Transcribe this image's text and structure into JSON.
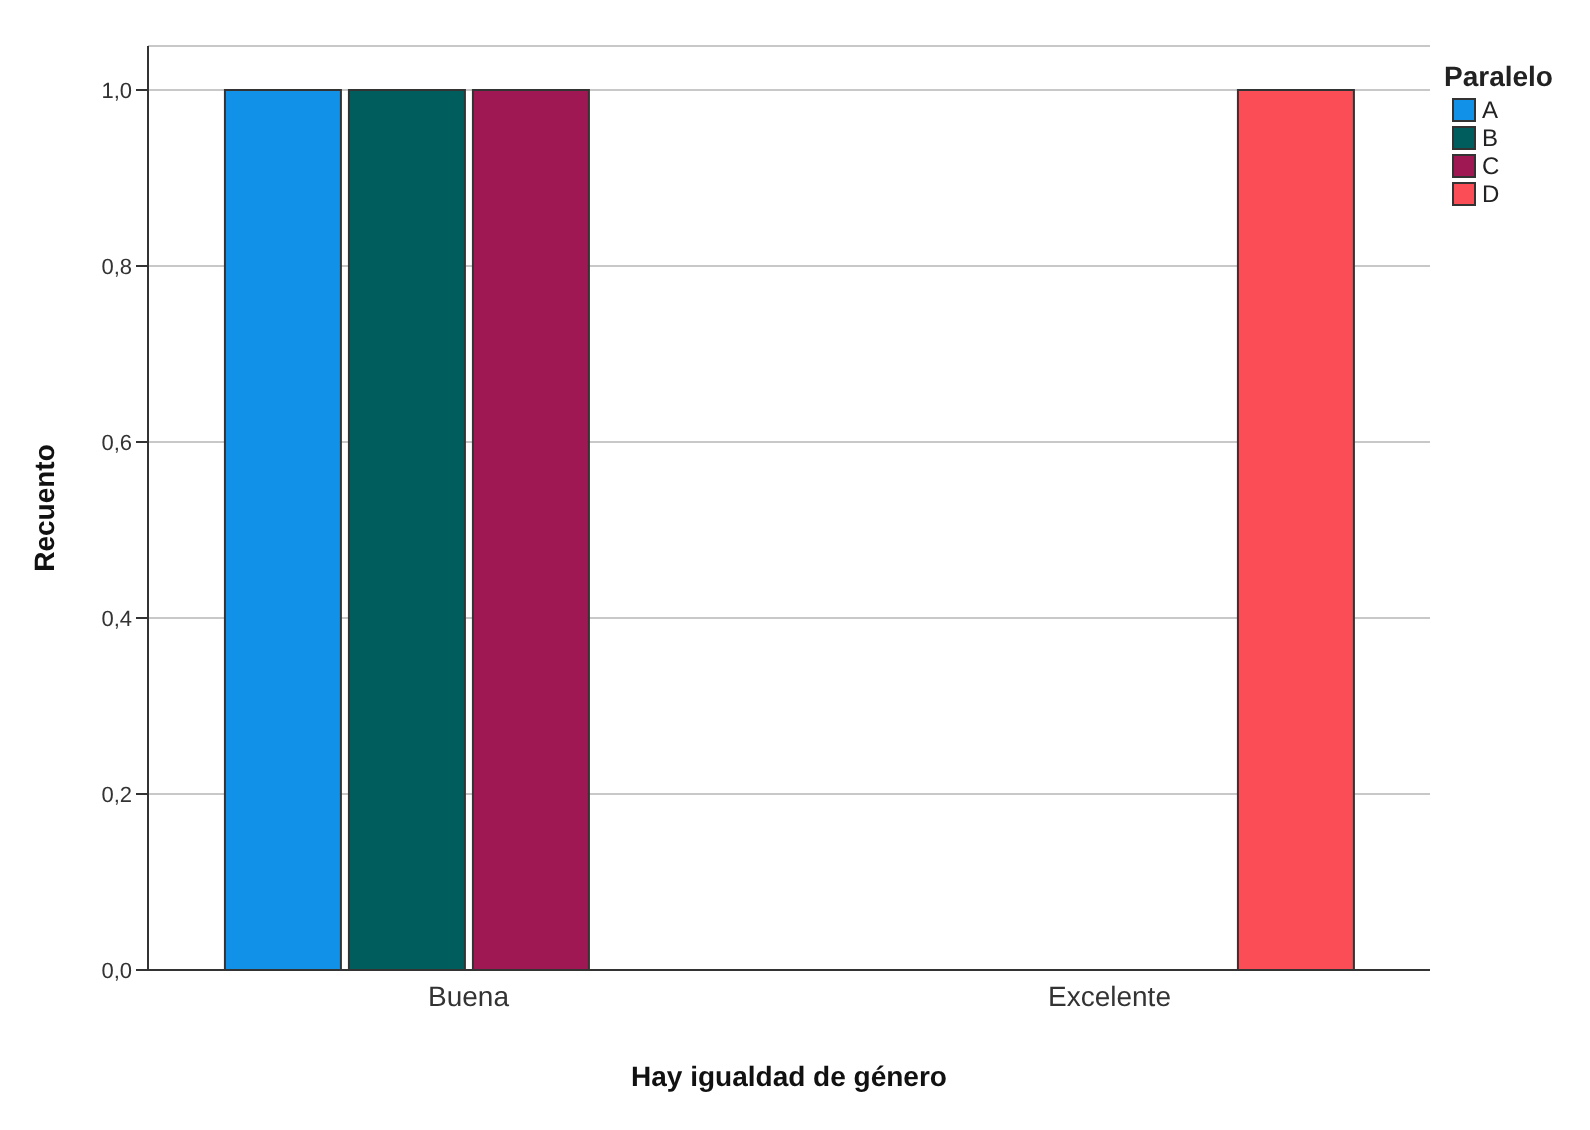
{
  "chart_data": {
    "type": "bar",
    "xlabel": "Hay igualdad de género",
    "ylabel": "Recuento",
    "legend_title": "Paralelo",
    "categories": [
      "Buena",
      "Excelente"
    ],
    "series": [
      {
        "name": "A",
        "color": "#1192e8",
        "values": [
          1,
          null
        ]
      },
      {
        "name": "B",
        "color": "#005d5d",
        "values": [
          1,
          null
        ]
      },
      {
        "name": "C",
        "color": "#9f1853",
        "values": [
          1,
          null
        ]
      },
      {
        "name": "D",
        "color": "#fa4d56",
        "values": [
          null,
          1
        ]
      }
    ],
    "ylim": [
      0,
      1.05
    ],
    "yticks": [
      {
        "value": 0,
        "label": "0,0"
      },
      {
        "value": 0.2,
        "label": "0,2"
      },
      {
        "value": 0.4,
        "label": "0,4"
      },
      {
        "value": 0.6,
        "label": "0,6"
      },
      {
        "value": 0.8,
        "label": "0,8"
      },
      {
        "value": 1,
        "label": "1,0"
      }
    ],
    "grid": "y",
    "legend": "top right"
  }
}
